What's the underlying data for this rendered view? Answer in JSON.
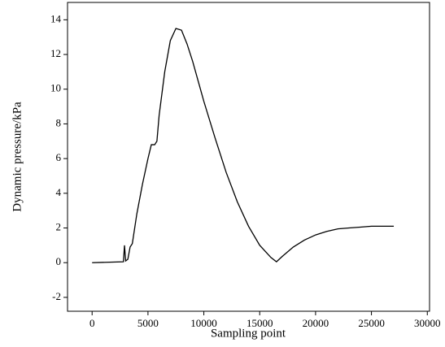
{
  "chart_data": {
    "type": "line",
    "x_label": "Sampling point",
    "y_label": "Dynamic pressure/kPa",
    "x": [
      0,
      2800,
      2900,
      3000,
      3200,
      3400,
      3600,
      4000,
      4500,
      5000,
      5300,
      5600,
      5800,
      6000,
      6500,
      7000,
      7500,
      8000,
      8500,
      9000,
      10000,
      11000,
      12000,
      13000,
      14000,
      15000,
      16000,
      16500,
      17000,
      18000,
      19000,
      20000,
      21000,
      22000,
      23000,
      24000,
      25000,
      26000,
      27000
    ],
    "series": [
      {
        "color": "#000000",
        "values": [
          0,
          0.05,
          1.0,
          0.1,
          0.2,
          0.9,
          1.1,
          2.8,
          4.5,
          6.0,
          6.8,
          6.8,
          7.0,
          8.5,
          11.0,
          12.8,
          13.5,
          13.4,
          12.6,
          11.6,
          9.3,
          7.2,
          5.2,
          3.5,
          2.1,
          1.0,
          0.3,
          0.05,
          0.35,
          0.9,
          1.3,
          1.6,
          1.8,
          1.95,
          2.0,
          2.05,
          2.1,
          2.1,
          2.1
        ]
      }
    ],
    "xlim": [
      -2200,
      30200
    ],
    "ylim": [
      -2.8,
      15
    ],
    "xticks": [
      0,
      5000,
      10000,
      15000,
      20000,
      25000,
      30000
    ],
    "yticks": [
      -2,
      0,
      2,
      4,
      6,
      8,
      10,
      12,
      14
    ]
  }
}
